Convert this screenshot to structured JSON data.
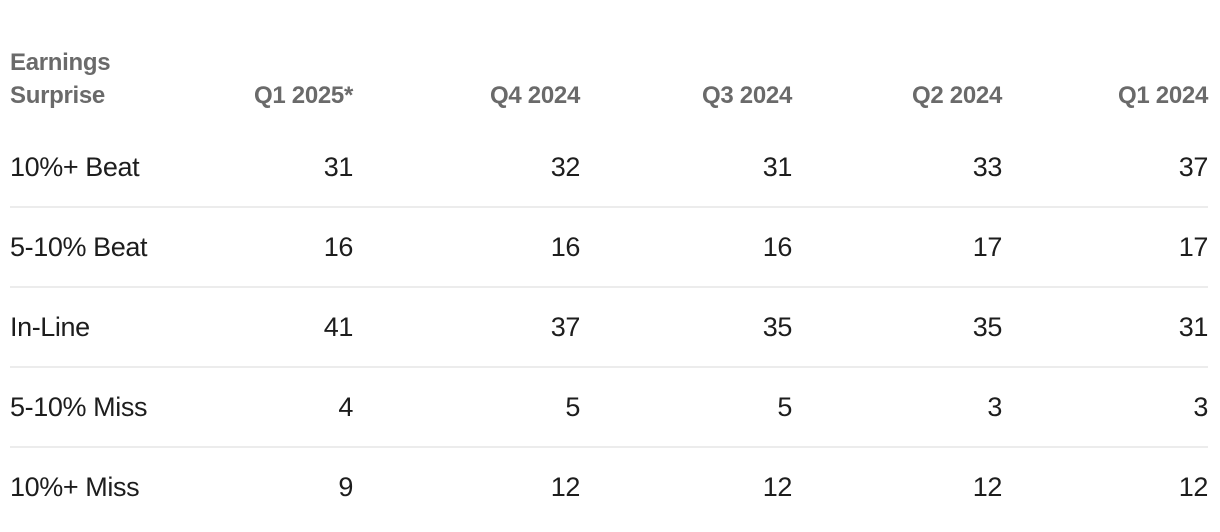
{
  "colors": {
    "background": "#ffffff",
    "header_text": "#6a6a6a",
    "body_text": "#1d1d1d",
    "divider": "#ececec"
  },
  "table": {
    "corner_label": "Earnings Surprise",
    "columns": [
      "Q1 2025*",
      "Q4 2024",
      "Q3 2024",
      "Q2 2024",
      "Q1 2024"
    ],
    "rows": [
      {
        "label": "10%+ Beat",
        "values": [
          "31",
          "32",
          "31",
          "33",
          "37"
        ]
      },
      {
        "label": "5-10% Beat",
        "values": [
          "16",
          "16",
          "16",
          "17",
          "17"
        ]
      },
      {
        "label": "In-Line",
        "values": [
          "41",
          "37",
          "35",
          "35",
          "31"
        ]
      },
      {
        "label": "5-10% Miss",
        "values": [
          "4",
          "5",
          "5",
          "3",
          "3"
        ]
      },
      {
        "label": "10%+ Miss",
        "values": [
          "9",
          "12",
          "12",
          "12",
          "12"
        ]
      }
    ]
  },
  "chart_data": {
    "type": "table",
    "title": "Earnings Surprise",
    "categories": [
      "Q1 2025*",
      "Q4 2024",
      "Q3 2024",
      "Q2 2024",
      "Q1 2024"
    ],
    "series": [
      {
        "name": "10%+ Beat",
        "values": [
          31,
          32,
          31,
          33,
          37
        ]
      },
      {
        "name": "5-10% Beat",
        "values": [
          16,
          16,
          16,
          17,
          17
        ]
      },
      {
        "name": "In-Line",
        "values": [
          41,
          37,
          35,
          35,
          31
        ]
      },
      {
        "name": "5-10% Miss",
        "values": [
          4,
          5,
          5,
          3,
          3
        ]
      },
      {
        "name": "10%+ Miss",
        "values": [
          9,
          12,
          12,
          12,
          12
        ]
      }
    ],
    "legend_position": "none",
    "grid": "horizontal-row-dividers",
    "footnote_marker": "*"
  }
}
